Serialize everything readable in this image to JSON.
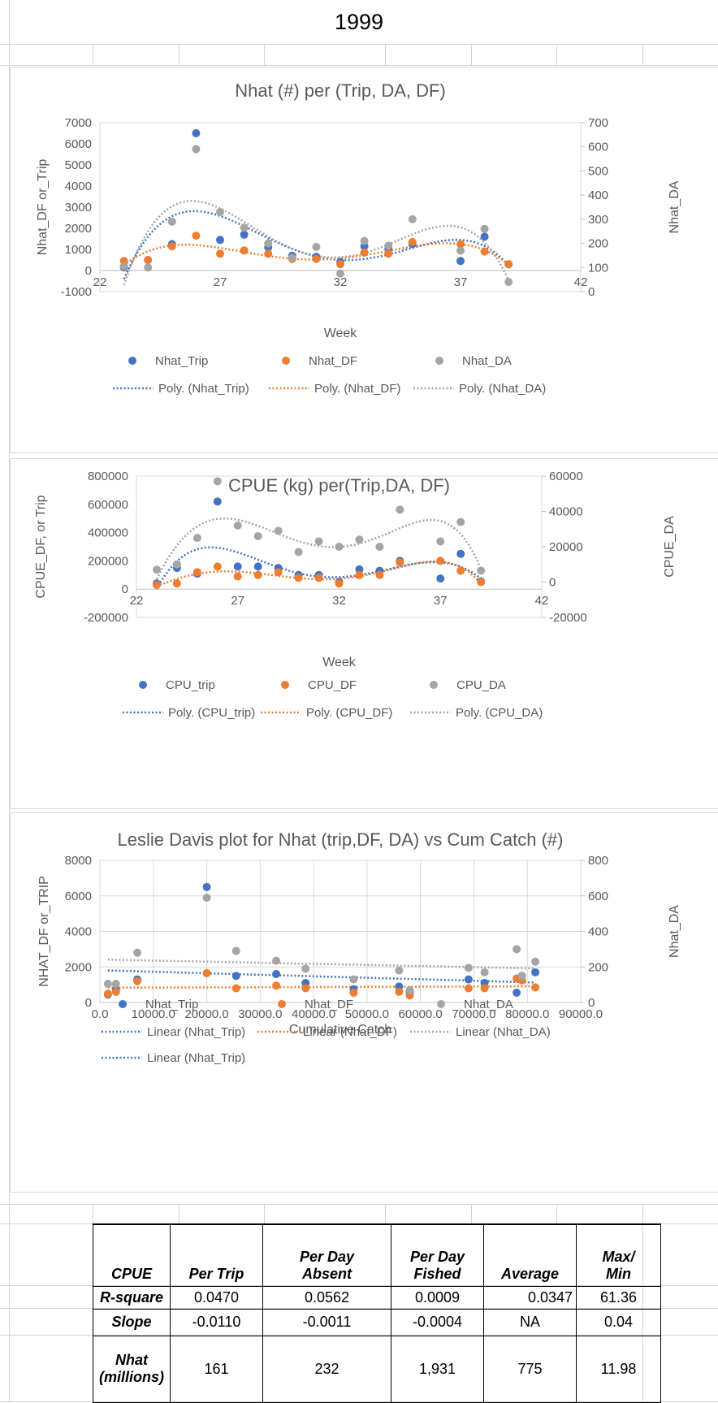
{
  "sheet_title": "1999",
  "chart_data": [
    {
      "type": "scatter",
      "title": "Nhat (#) per (Trip, DA, DF)",
      "xlabel": "Week",
      "ylabel": "Nhat_DF or_Trip",
      "y2label": "Nhat_DA",
      "xlim": [
        22,
        42
      ],
      "ylim": [
        -1000,
        7000
      ],
      "y2lim": [
        0,
        700
      ],
      "x_ticks": [
        "22",
        "27",
        "32",
        "37",
        "42"
      ],
      "y_ticks": [
        "-1000",
        "0",
        "1000",
        "2000",
        "3000",
        "4000",
        "5000",
        "6000",
        "7000"
      ],
      "y2_ticks": [
        "0",
        "100",
        "200",
        "300",
        "400",
        "500",
        "600",
        "700"
      ],
      "grid": false,
      "legend_position": "bottom",
      "series": [
        {
          "name": "Nhat_Trip",
          "axis": "left",
          "color": "#4472c4",
          "x": [
            23,
            24,
            25,
            26,
            27,
            28,
            29,
            30,
            31,
            32,
            33,
            34,
            35,
            37,
            38,
            39
          ],
          "y": [
            150,
            500,
            1250,
            6500,
            1450,
            1700,
            1100,
            700,
            650,
            400,
            1150,
            1050,
            1250,
            450,
            1600,
            300
          ]
        },
        {
          "name": "Nhat_DF",
          "axis": "left",
          "color": "#ed7d31",
          "x": [
            23,
            24,
            25,
            26,
            27,
            28,
            29,
            30,
            31,
            32,
            33,
            34,
            35,
            37,
            38,
            39
          ],
          "y": [
            450,
            500,
            1150,
            1650,
            800,
            950,
            800,
            550,
            550,
            300,
            850,
            800,
            1350,
            1250,
            900,
            300
          ]
        },
        {
          "name": "Nhat_DA",
          "axis": "right",
          "color": "#a5a5a5",
          "x": [
            23,
            24,
            25,
            26,
            27,
            28,
            29,
            30,
            31,
            32,
            33,
            34,
            35,
            37,
            38,
            39
          ],
          "y": [
            105,
            100,
            290,
            590,
            330,
            265,
            200,
            140,
            185,
            75,
            210,
            190,
            300,
            170,
            260,
            40
          ]
        }
      ],
      "trendlines": [
        {
          "name": "Poly. (Nhat_Trip)",
          "color": "#4472c4"
        },
        {
          "name": "Poly. (Nhat_DF)",
          "color": "#ed7d31"
        },
        {
          "name": "Poly. (Nhat_DA)",
          "color": "#a5a5a5"
        }
      ]
    },
    {
      "type": "scatter",
      "title": "CPUE (kg)  per(Trip,DA, DF)",
      "xlabel": "Week",
      "ylabel": "CPUE_DF, or Trip",
      "y2label": "CPUE_DA",
      "xlim": [
        22,
        42
      ],
      "ylim": [
        -200000,
        800000
      ],
      "y2lim": [
        -20000,
        60000
      ],
      "x_ticks": [
        "22",
        "27",
        "32",
        "37",
        "42"
      ],
      "y_ticks": [
        "-200000",
        "0",
        "200000",
        "400000",
        "600000",
        "800000"
      ],
      "y2_ticks": [
        "-20000",
        "0",
        "20000",
        "40000",
        "60000"
      ],
      "grid": false,
      "legend_position": "bottom",
      "series": [
        {
          "name": "CPU_trip",
          "axis": "left",
          "color": "#4472c4",
          "x": [
            23,
            24,
            25,
            26,
            27,
            28,
            29,
            30,
            31,
            32,
            33,
            34,
            35,
            37,
            38,
            39
          ],
          "y": [
            40000,
            150000,
            110000,
            620000,
            160000,
            160000,
            150000,
            100000,
            100000,
            50000,
            140000,
            130000,
            200000,
            75000,
            250000,
            55000
          ]
        },
        {
          "name": "CPU_DF",
          "axis": "left",
          "color": "#ed7d31",
          "x": [
            23,
            24,
            25,
            26,
            27,
            28,
            29,
            30,
            31,
            32,
            33,
            34,
            35,
            37,
            38,
            39
          ],
          "y": [
            30000,
            40000,
            120000,
            160000,
            90000,
            100000,
            120000,
            80000,
            80000,
            40000,
            100000,
            100000,
            190000,
            200000,
            130000,
            50000
          ]
        },
        {
          "name": "CPU_DA",
          "axis": "right",
          "color": "#a5a5a5",
          "x": [
            23,
            24,
            25,
            26,
            27,
            28,
            29,
            30,
            31,
            32,
            33,
            34,
            35,
            37,
            38,
            39
          ],
          "y": [
            7000,
            10000,
            25000,
            57000,
            32000,
            26000,
            29000,
            17000,
            23000,
            20000,
            24000,
            20000,
            41000,
            23000,
            34000,
            6500
          ]
        }
      ],
      "trendlines": [
        {
          "name": "Poly. (CPU_trip)",
          "color": "#4472c4"
        },
        {
          "name": "Poly. (CPU_DF)",
          "color": "#ed7d31"
        },
        {
          "name": "Poly. (CPU_DA)",
          "color": "#a5a5a5"
        }
      ]
    },
    {
      "type": "scatter",
      "title": "Leslie Davis plot for Nhat (trip,DF, DA) vs Cum Catch (#)",
      "xlabel": "Cumulative Catch",
      "ylabel": "NHAT_DF or_TRIP",
      "y2label": "Nhat_DA",
      "xlim": [
        0,
        90000
      ],
      "ylim": [
        0,
        8000
      ],
      "y2lim": [
        0,
        800
      ],
      "x_ticks": [
        "0.0",
        "10000.0",
        "20000.0",
        "30000.0",
        "40000.0",
        "50000.0",
        "60000.0",
        "70000.0",
        "80000.0",
        "90000.0"
      ],
      "y_ticks": [
        "0",
        "2000",
        "4000",
        "6000",
        "8000"
      ],
      "y2_ticks": [
        "0",
        "200",
        "400",
        "600",
        "800"
      ],
      "grid": true,
      "legend_position": "bottom",
      "series": [
        {
          "name": "Nhat_Trip",
          "axis": "left",
          "color": "#4472c4",
          "x": [
            1500,
            3000,
            7000,
            20000,
            25500,
            33000,
            38500,
            47500,
            56000,
            58000,
            69000,
            72000,
            78000,
            79000,
            81500
          ],
          "y": [
            450,
            700,
            1300,
            6500,
            1500,
            1600,
            1100,
            750,
            900,
            600,
            1300,
            1100,
            550,
            1500,
            1700
          ]
        },
        {
          "name": "Nhat_DF",
          "axis": "left",
          "color": "#ed7d31",
          "x": [
            1500,
            3000,
            7000,
            20000,
            25500,
            33000,
            38500,
            47500,
            56000,
            58000,
            69000,
            72000,
            78000,
            79000,
            81500
          ],
          "y": [
            500,
            600,
            1200,
            1650,
            800,
            950,
            800,
            550,
            600,
            400,
            800,
            800,
            1350,
            1250,
            850
          ]
        },
        {
          "name": "Nhat_DA",
          "axis": "right",
          "color": "#a5a5a5",
          "x": [
            1500,
            3000,
            7000,
            20000,
            25500,
            33000,
            38500,
            47500,
            56000,
            58000,
            69000,
            72000,
            78000,
            79000,
            81500
          ],
          "y": [
            105,
            105,
            280,
            590,
            290,
            235,
            190,
            130,
            180,
            70,
            195,
            170,
            300,
            150,
            230
          ]
        }
      ],
      "trendlines": [
        {
          "name": "Linear (Nhat_Trip)",
          "color": "#4472c4"
        },
        {
          "name": "Linear (Nhat_DF)",
          "color": "#ed7d31"
        },
        {
          "name": "Linear (Nhat_DA)",
          "color": "#a5a5a5"
        },
        {
          "name": "Linear (Nhat_Trip)",
          "color": "#4472c4"
        }
      ]
    }
  ],
  "table": {
    "header": [
      "CPUE",
      "Per Trip",
      "Per Day\nAbsent",
      "Per Day\nFished",
      "Average",
      "Max/\nMin"
    ],
    "rows": [
      [
        "R-square",
        "0.0470",
        "0.0562",
        "0.0009",
        "0.0347",
        "61.36"
      ],
      [
        "Slope",
        "-0.0110",
        "-0.0011",
        "-0.0004",
        "NA",
        "0.04"
      ],
      [
        "Nhat\n(millions)",
        "161",
        "232",
        "1,931",
        "775",
        "11.98"
      ]
    ]
  }
}
